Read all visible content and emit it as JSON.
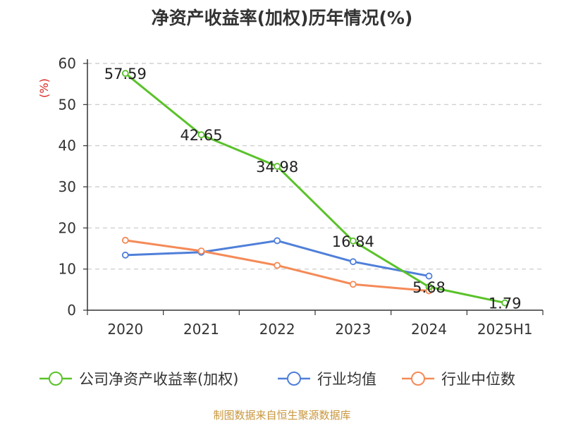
{
  "chart_data": {
    "type": "line",
    "title": "净资产收益率(加权)历年情况(%)",
    "ylabel": "(%)",
    "xlabel": "",
    "categories": [
      "2020",
      "2021",
      "2022",
      "2023",
      "2024",
      "2025H1"
    ],
    "ylim": [
      0,
      60
    ],
    "yticks": [
      0,
      10,
      20,
      30,
      40,
      50,
      60
    ],
    "grid": "horizontal dashed",
    "legend_position": "bottom",
    "series": [
      {
        "name": "公司净资产收益率(加权)",
        "color": "#5ac22a",
        "values": [
          57.59,
          42.65,
          34.98,
          16.84,
          5.68,
          1.79
        ],
        "labels": [
          "57.59",
          "42.65",
          "34.98",
          "16.84",
          "5.68",
          "1.79"
        ]
      },
      {
        "name": "行业均值",
        "color": "#4f7fd9",
        "values": [
          13.4,
          14.1,
          16.9,
          11.8,
          8.3,
          null
        ]
      },
      {
        "name": "行业中位数",
        "color": "#f58a57",
        "values": [
          17.0,
          14.4,
          10.9,
          6.3,
          4.7,
          null
        ]
      }
    ]
  },
  "source": "制图数据来自恒生聚源数据库"
}
